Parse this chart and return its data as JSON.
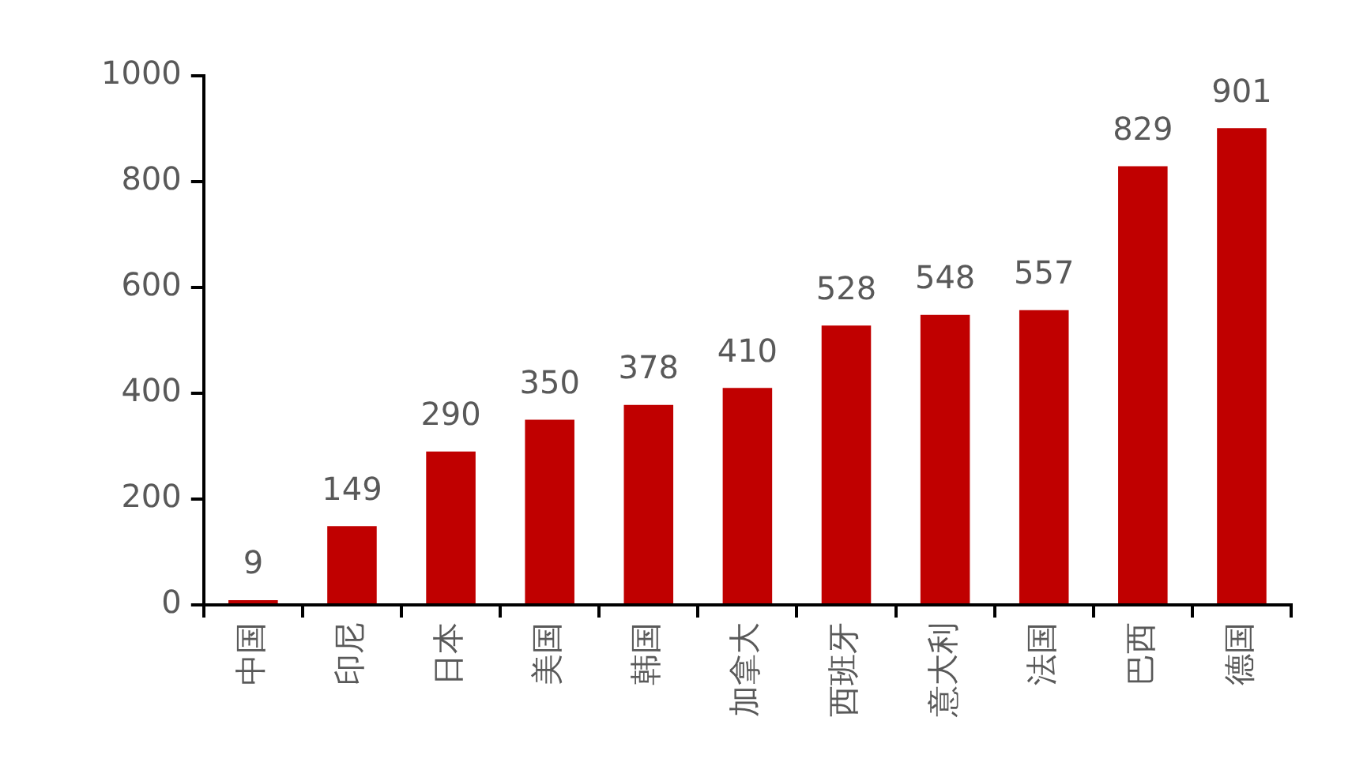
{
  "chart_data": {
    "type": "bar",
    "categories": [
      "中国",
      "印尼",
      "日本",
      "美国",
      "韩国",
      "加拿大",
      "西班牙",
      "意大利",
      "法国",
      "巴西",
      "德国"
    ],
    "values": [
      9,
      149,
      290,
      350,
      378,
      410,
      528,
      548,
      557,
      829,
      901
    ],
    "color": "#c00000",
    "ylim": [
      0,
      1000
    ],
    "yticks": [
      0,
      200,
      400,
      600,
      800,
      1000
    ],
    "grid": false,
    "legend": false,
    "data_labels": true
  }
}
